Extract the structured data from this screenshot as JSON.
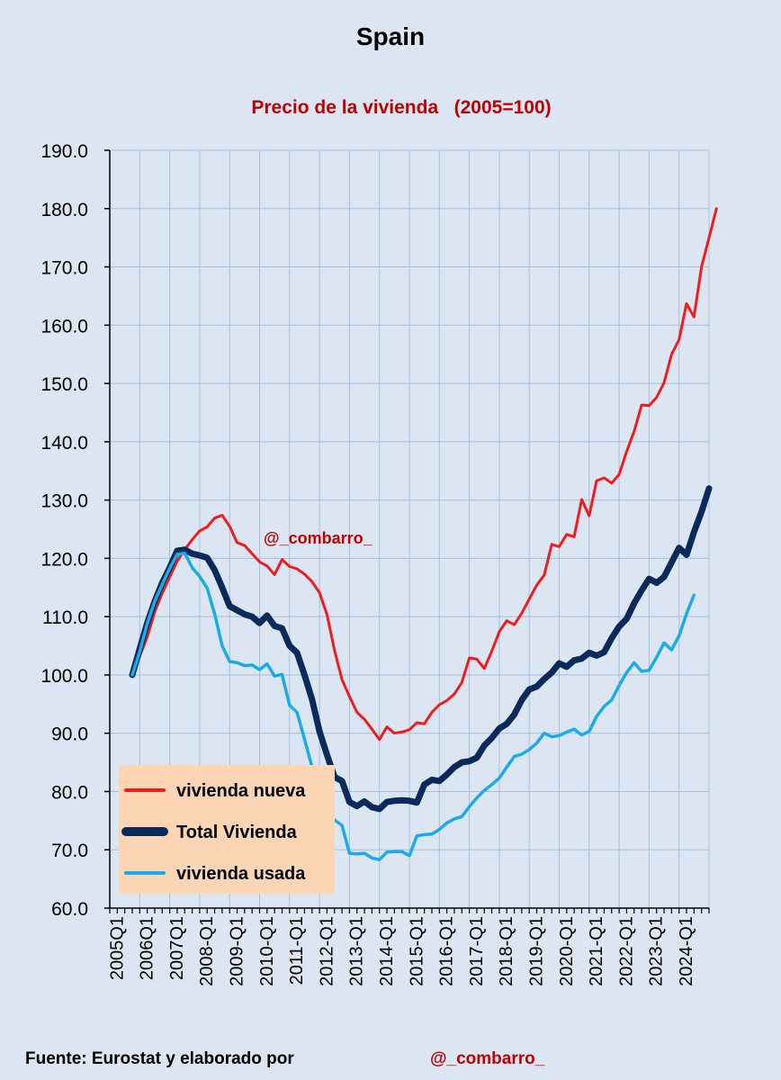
{
  "chart_data": {
    "type": "line",
    "title": "Spain",
    "subtitle": "Precio de la vivienda   (2005=100)",
    "watermark": "@_combarro_",
    "ylim": [
      60,
      190
    ],
    "y_ticks": [
      "60.0",
      "70.0",
      "80.0",
      "90.0",
      "100.0",
      "110.0",
      "120.0",
      "130.0",
      "140.0",
      "150.0",
      "160.0",
      "170.0",
      "180.0",
      "190.0"
    ],
    "x_ticks": [
      "2005Q1",
      "2006Q1",
      "2007Q1",
      "2008-Q1",
      "2009-Q1",
      "2010-Q1",
      "2011-Q1",
      "2012-Q1",
      "2013-Q1",
      "2014-Q1",
      "2015-Q1",
      "2016-Q1",
      "2017-Q1",
      "2018-Q1",
      "2019-Q1",
      "2020-Q1",
      "2021-Q1",
      "2022-Q1",
      "2023-Q1",
      "2024-Q1"
    ],
    "x_start_index": 3,
    "grid": true,
    "legend_position": "bottom-left",
    "series": [
      {
        "name": "vivienda nueva",
        "color": "#ee1c1c",
        "width": 3,
        "values": [
          100.0,
          103.2,
          106.5,
          110.8,
          114.0,
          116.8,
          119.5,
          121.5,
          123.2,
          124.7,
          125.4,
          126.9,
          127.4,
          125.5,
          122.7,
          122.2,
          120.8,
          119.4,
          118.7,
          117.2,
          119.8,
          118.6,
          118.2,
          117.3,
          116.0,
          114.1,
          110.4,
          104.2,
          99.2,
          96.3,
          93.6,
          92.4,
          90.7,
          88.9,
          91.1,
          90.0,
          90.2,
          90.6,
          91.8,
          91.6,
          93.6,
          94.9,
          95.6,
          96.7,
          98.7,
          102.9,
          102.7,
          101.1,
          104.1,
          107.4,
          109.3,
          108.6,
          110.6,
          113.0,
          115.4,
          117.1,
          122.4,
          122.0,
          124.1,
          123.7,
          130.1,
          127.3,
          133.3,
          133.8,
          132.9,
          134.4,
          138.3,
          141.8,
          146.3,
          146.2,
          147.6,
          150.1,
          155.0,
          157.5,
          163.7,
          161.4,
          170.0,
          175.0,
          180.0
        ]
      },
      {
        "name": "Total Vivienda",
        "color": "#0b2a5c",
        "width": 7,
        "values": [
          100.0,
          104.5,
          108.9,
          112.6,
          115.8,
          118.4,
          121.3,
          121.5,
          120.8,
          120.5,
          120.1,
          118.0,
          115.0,
          111.8,
          111.1,
          110.4,
          110.0,
          108.9,
          110.2,
          108.4,
          108.0,
          105.0,
          103.8,
          100.0,
          95.8,
          90.3,
          86.3,
          82.5,
          81.8,
          78.2,
          77.5,
          78.3,
          77.3,
          77.0,
          78.2,
          78.4,
          78.5,
          78.4,
          78.1,
          81.2,
          82.0,
          81.8,
          82.9,
          84.2,
          85.0,
          85.2,
          85.8,
          87.9,
          89.2,
          90.8,
          91.6,
          93.2,
          95.7,
          97.5,
          98.0,
          99.3,
          100.4,
          102.0,
          101.4,
          102.5,
          102.8,
          103.8,
          103.3,
          103.9,
          106.3,
          108.3,
          109.6,
          112.3,
          114.5,
          116.5,
          115.8,
          116.8,
          119.3,
          121.8,
          120.6,
          124.5,
          128.0,
          132.0
        ]
      },
      {
        "name": "vivienda usada",
        "color": "#1aabe8",
        "width": 3.5,
        "values": [
          100.0,
          104.0,
          108.8,
          112.6,
          115.5,
          118.3,
          120.7,
          120.9,
          118.4,
          116.9,
          114.9,
          110.5,
          105.0,
          102.3,
          102.1,
          101.6,
          101.7,
          100.9,
          101.9,
          99.8,
          100.1,
          94.8,
          93.6,
          89.0,
          84.2,
          79.5,
          76.5,
          75.1,
          74.2,
          69.4,
          69.3,
          69.4,
          68.6,
          68.3,
          69.6,
          69.7,
          69.7,
          69.0,
          72.4,
          72.6,
          72.7,
          73.5,
          74.6,
          75.3,
          75.7,
          77.4,
          78.9,
          80.2,
          81.2,
          82.3,
          84.2,
          86.0,
          86.4,
          87.2,
          88.3,
          90.0,
          89.4,
          89.6,
          90.2,
          90.7,
          89.7,
          90.3,
          92.9,
          94.6,
          95.7,
          98.2,
          100.4,
          102.1,
          100.6,
          100.8,
          103.0,
          105.5,
          104.3,
          106.7,
          110.5,
          113.7
        ]
      }
    ]
  },
  "footer": {
    "source_text": "Fuente: Eurostat y elaborado por",
    "author": "@_combarro_"
  },
  "colors": {
    "background": "#dce6f2",
    "plot_background": "#dce6f2",
    "grid": "#a6bde0",
    "title": "#000000",
    "subtitle": "#c00000",
    "legend_background": "#fcd5b4"
  }
}
